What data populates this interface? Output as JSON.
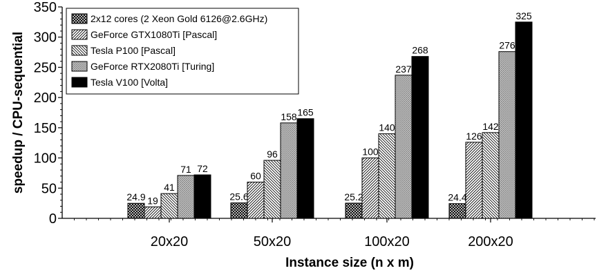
{
  "chart_data": {
    "type": "bar",
    "xlabel": "Instance size (n x m)",
    "ylabel": "speedup / CPU-sequential",
    "ylim": [
      0,
      350
    ],
    "yticks": [
      0,
      50,
      100,
      150,
      200,
      250,
      300,
      350
    ],
    "grid": false,
    "legend_position": "top-left",
    "categories": [
      "20x20",
      "50x20",
      "100x20",
      "200x20"
    ],
    "series": [
      {
        "name": "2x12 cores (2 Xeon Gold 6126@2.6GHz)",
        "pattern": "crosshatch-dense",
        "values": [
          24.9,
          25.6,
          25.2,
          24.4
        ],
        "labels": [
          "24.9",
          "25.6",
          "25.2",
          "24.4"
        ]
      },
      {
        "name": "GeForce GTX1080Ti [Pascal]",
        "pattern": "diagonal-forward",
        "values": [
          19,
          60,
          100,
          126
        ],
        "labels": [
          "19",
          "60",
          "100",
          "126"
        ]
      },
      {
        "name": "Tesla P100 [Pascal]",
        "pattern": "diagonal-backward",
        "values": [
          41,
          96,
          140,
          142
        ],
        "labels": [
          "41",
          "96",
          "140",
          "142"
        ]
      },
      {
        "name": "GeForce RTX2080Ti [Turing]",
        "pattern": "crosshatch-grey",
        "values": [
          71,
          158,
          237,
          276
        ],
        "labels": [
          "71",
          "158",
          "237",
          "276"
        ]
      },
      {
        "name": "Tesla V100 [Volta]",
        "pattern": "solid-black",
        "values": [
          72,
          165,
          268,
          325
        ],
        "labels": [
          "72",
          "165",
          "268",
          "325"
        ]
      }
    ]
  }
}
